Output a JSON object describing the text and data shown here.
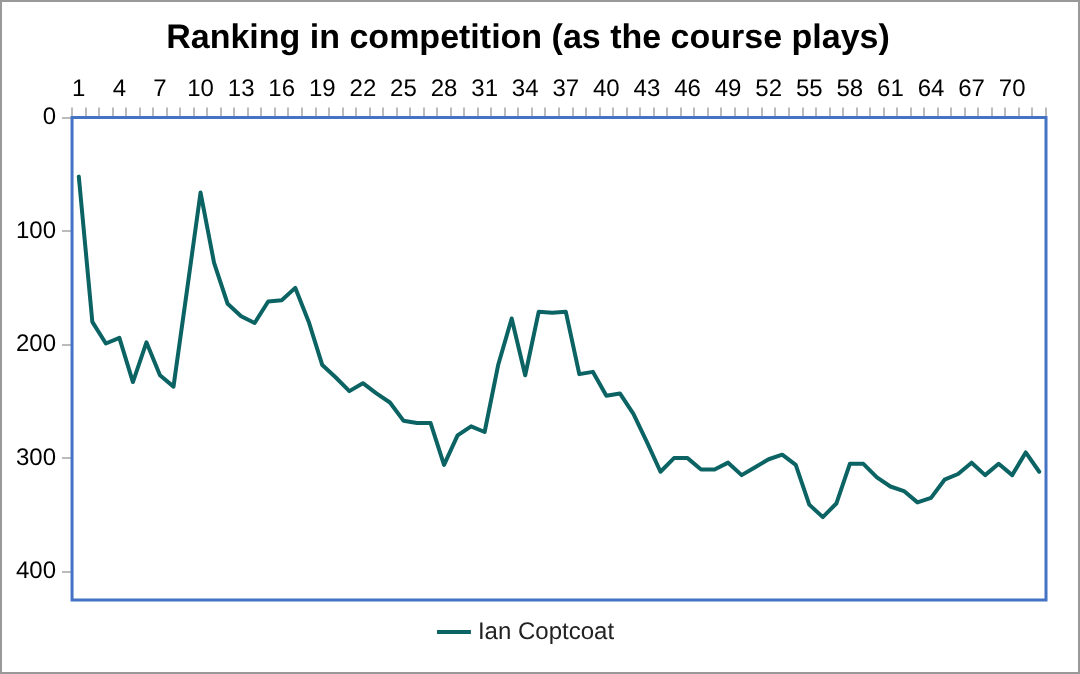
{
  "chart_data": {
    "type": "line",
    "title": "Ranking in competition (as the course plays)",
    "categories": [
      "1",
      null,
      null,
      "4",
      null,
      null,
      "7",
      null,
      null,
      "10",
      null,
      null,
      "13",
      null,
      null,
      "16",
      null,
      null,
      "19",
      null,
      null,
      "22",
      null,
      null,
      "25",
      null,
      null,
      "28",
      null,
      null,
      "31",
      null,
      null,
      "34",
      null,
      null,
      "37",
      null,
      null,
      "40",
      null,
      null,
      "43",
      null,
      null,
      "46",
      null,
      null,
      "49",
      null,
      null,
      "52",
      null,
      null,
      "55",
      null,
      null,
      "58",
      null,
      null,
      "61",
      null,
      null,
      "64",
      null,
      null,
      "67",
      null,
      null,
      "70",
      null,
      null
    ],
    "series": [
      {
        "name": "Ian Coptcoat",
        "color": "#0b6363",
        "values": [
          52,
          180,
          199,
          194,
          233,
          198,
          227,
          237,
          152,
          66,
          128,
          164,
          175,
          181,
          162,
          161,
          150,
          180,
          218,
          229,
          241,
          234,
          243,
          251,
          267,
          269,
          269,
          306,
          280,
          272,
          277,
          218,
          177,
          227,
          171,
          172,
          171,
          226,
          224,
          245,
          243,
          261,
          286,
          312,
          300,
          300,
          310,
          310,
          304,
          315,
          308,
          301,
          297,
          306,
          341,
          352,
          340,
          305,
          305,
          317,
          325,
          329,
          339,
          335,
          319,
          314,
          304,
          315,
          305,
          315,
          295,
          312
        ]
      }
    ],
    "ylim": [
      425,
      0
    ],
    "yticks": [
      0,
      100,
      200,
      300,
      400
    ],
    "grid": false,
    "legend": "bottom",
    "marker": "none",
    "line_style": "solid"
  }
}
